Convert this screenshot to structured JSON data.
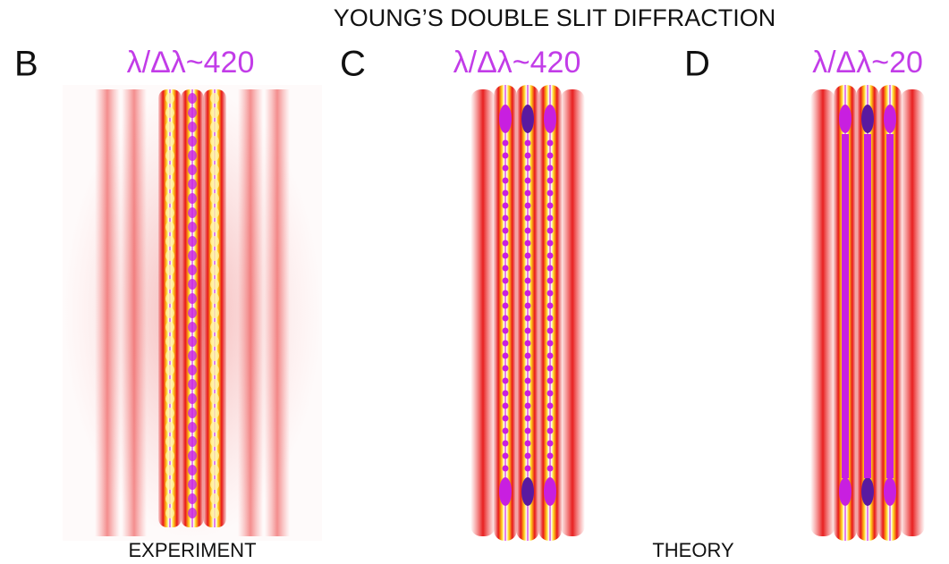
{
  "title": "YOUNG’S DOUBLE SLIT DIFFRACTION",
  "panels": [
    {
      "letter": "B",
      "ratio": "λ/Δλ~420"
    },
    {
      "letter": "C",
      "ratio": "λ/Δλ~420"
    },
    {
      "letter": "D",
      "ratio": "λ/Δλ~20"
    }
  ],
  "captions": {
    "experiment": "EXPERIMENT",
    "theory": "THEORY"
  }
}
